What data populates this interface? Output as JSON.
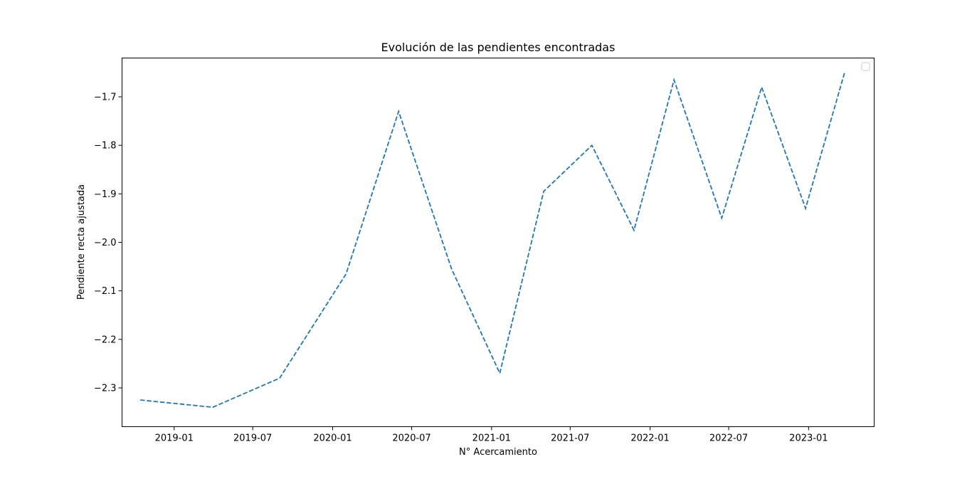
{
  "chart_data": {
    "type": "line",
    "title": "Evolución de las pendientes encontradas",
    "xlabel": "N° Acercamiento",
    "ylabel": "Pendiente recta ajustada",
    "x_tick_labels": [
      "2019-01",
      "2019-07",
      "2020-01",
      "2020-07",
      "2021-01",
      "2021-07",
      "2022-01",
      "2022-07",
      "2023-01"
    ],
    "y_tick_labels": [
      "-2.3",
      "-2.2",
      "-2.1",
      "-2.0",
      "-1.9",
      "-1.8",
      "-1.7"
    ],
    "ylim": [
      -2.38,
      -1.62
    ],
    "xlim": [
      "2018-09-03",
      "2023-06-01"
    ],
    "grid": false,
    "legend": "top-right",
    "series": [
      {
        "color": "#1f77b4",
        "line_style": "dashed",
        "x": [
          "2018-10-15",
          "2019-03-31",
          "2019-09-01",
          "2020-02-01",
          "2020-06-01",
          "2020-10-01",
          "2021-01-20",
          "2021-05-01",
          "2021-08-20",
          "2021-11-25",
          "2022-02-25",
          "2022-06-15",
          "2022-09-15",
          "2022-12-25",
          "2023-03-25"
        ],
        "values": [
          -2.325,
          -2.34,
          -2.28,
          -2.065,
          -1.73,
          -2.055,
          -2.27,
          -1.895,
          -1.8,
          -1.975,
          -1.665,
          -1.95,
          -1.68,
          -1.93,
          -1.65
        ]
      }
    ]
  }
}
